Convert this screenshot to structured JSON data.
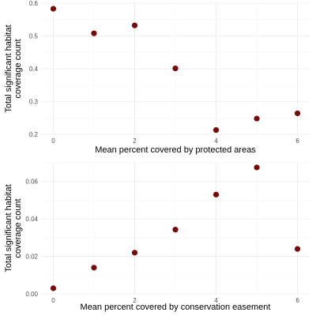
{
  "chart_data": [
    {
      "type": "scatter",
      "title": "",
      "xlabel": "Mean percent covered by protected areas",
      "ylabel": [
        "Total significant habitat",
        "coverage count"
      ],
      "x": [
        0,
        1,
        2,
        3,
        4,
        5,
        6
      ],
      "y": [
        0.583,
        0.508,
        0.532,
        0.401,
        0.213,
        0.248,
        0.264
      ],
      "xlim": [
        -0.3,
        6.3
      ],
      "ylim": [
        0.2,
        0.6
      ],
      "xticks": [
        0,
        2,
        4,
        6
      ],
      "xtick_labels": [
        "0",
        "2",
        "4",
        "6"
      ],
      "yticks": [
        0.2,
        0.3,
        0.4,
        0.5,
        0.6
      ],
      "ytick_labels": [
        "0.2",
        "0.3",
        "0.4",
        "0.5",
        "0.6"
      ],
      "grid": true,
      "point_color": "#7a0a0a"
    },
    {
      "type": "scatter",
      "title": "",
      "xlabel": "Mean percent covered by conservation easement",
      "ylabel": [
        "Total significant habitat",
        "coverage count"
      ],
      "x": [
        0,
        1,
        2,
        3,
        4,
        5,
        6
      ],
      "y": [
        0.003,
        0.014,
        0.022,
        0.0343,
        0.053,
        0.0675,
        0.024
      ],
      "xlim": [
        -0.3,
        6.3
      ],
      "ylim": [
        0.0,
        0.07
      ],
      "xticks": [
        0,
        2,
        4,
        6
      ],
      "xtick_labels": [
        "0",
        "2",
        "4",
        "6"
      ],
      "yticks": [
        0.0,
        0.02,
        0.04,
        0.06
      ],
      "ytick_labels": [
        "0.00",
        "0.02",
        "0.04",
        "0.06"
      ],
      "grid": true,
      "point_color": "#7a0a0a"
    }
  ]
}
